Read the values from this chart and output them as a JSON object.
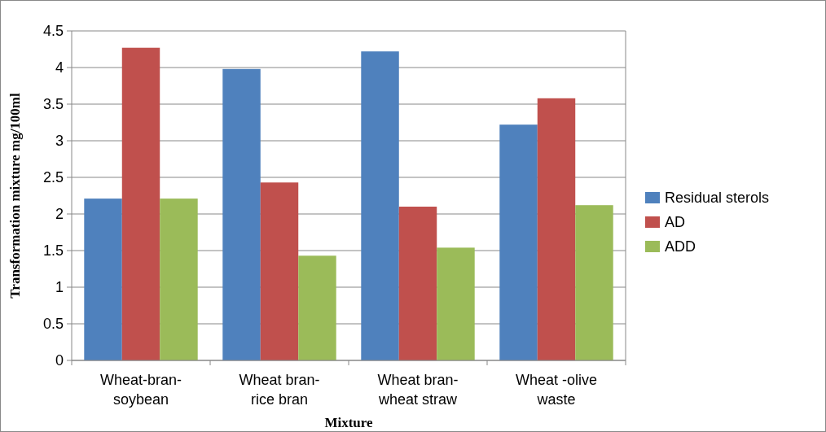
{
  "chart_data": {
    "type": "bar",
    "xlabel": "Mixture",
    "ylabel": "Transformation mixture mg/100ml",
    "categories": [
      "Wheat-bran-\nsoybean",
      "Wheat bran-\nrice bran",
      "Wheat bran-\nwheat straw",
      "Wheat -olive\nwaste"
    ],
    "series": [
      {
        "name": "Residual sterols",
        "color": "#4f81bd",
        "values": [
          2.21,
          3.98,
          4.22,
          3.22
        ]
      },
      {
        "name": "AD",
        "color": "#c0504d",
        "values": [
          4.27,
          2.43,
          2.1,
          3.58
        ]
      },
      {
        "name": "ADD",
        "color": "#9bbb59",
        "values": [
          2.21,
          1.43,
          1.54,
          2.12
        ]
      }
    ],
    "ylim": [
      0,
      4.5
    ],
    "yticks": [
      0,
      0.5,
      1,
      1.5,
      2,
      2.5,
      3,
      3.5,
      4,
      4.5
    ],
    "grid": "y",
    "legend": "right"
  }
}
